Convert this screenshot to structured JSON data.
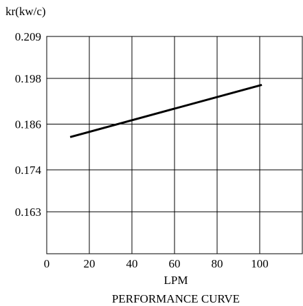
{
  "chart_data": {
    "type": "line",
    "title": "PERFORMANCE CURVE",
    "xlabel": "LPM",
    "ylabel": "kr(kw/c)",
    "xlim": [
      0,
      120
    ],
    "ylim": [
      0.152,
      0.209
    ],
    "x_ticks": [
      0,
      20,
      40,
      60,
      80,
      100
    ],
    "x_tick_labels": [
      "0",
      "20",
      "40",
      "60",
      "80",
      "100"
    ],
    "y_ticks": [
      0.209,
      0.198,
      0.186,
      0.174,
      0.163
    ],
    "y_tick_labels": [
      "0.209",
      "0.198",
      "0.186",
      "0.174",
      "0.163"
    ],
    "grid": true,
    "series": [
      {
        "x": [
          11,
          101
        ],
        "y": [
          0.1826,
          0.1963
        ]
      }
    ]
  }
}
